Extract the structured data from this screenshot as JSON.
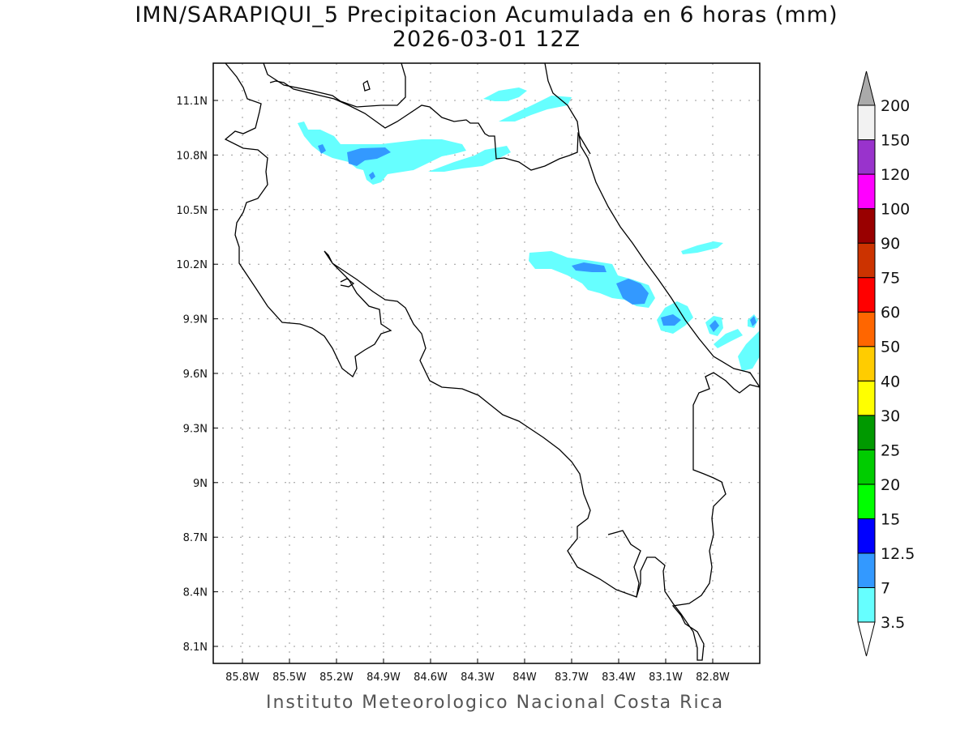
{
  "title": "IMN/SARAPIQUI_5 Precipitacion Acumulada en 6 horas (mm)",
  "subtitle": "2026-03-01 12Z",
  "footer": "Instituto Meteorologico Nacional Costa Rica",
  "map": {
    "lon_labels": [
      "85.8W",
      "85.5W",
      "85.2W",
      "84.9W",
      "84.6W",
      "84.3W",
      "84W",
      "83.7W",
      "83.4W",
      "83.1W",
      "82.8W"
    ],
    "lat_labels": [
      "11.1N",
      "10.8N",
      "10.5N",
      "10.2N",
      "9.9N",
      "9.6N",
      "9.3N",
      "9N",
      "8.7N",
      "8.4N",
      "8.1N"
    ],
    "precip_colors": {
      "light": "#66ffff",
      "medium": "#3399ff",
      "heavy": "#0000ff"
    }
  },
  "colorbar": {
    "labels": [
      "3.5",
      "7",
      "12.5",
      "15",
      "20",
      "25",
      "30",
      "40",
      "50",
      "60",
      "75",
      "90",
      "100",
      "120",
      "150",
      "200"
    ],
    "colors": [
      "#66ffff",
      "#3399ff",
      "#0000ff",
      "#00ff00",
      "#00cc00",
      "#009900",
      "#ffff00",
      "#ffcc00",
      "#ff6600",
      "#ff0000",
      "#cc3300",
      "#990000",
      "#ff00ff",
      "#9933cc",
      "#f2f2f2"
    ],
    "over_color": "#aaaaaa",
    "under_color": "#ffffff"
  }
}
